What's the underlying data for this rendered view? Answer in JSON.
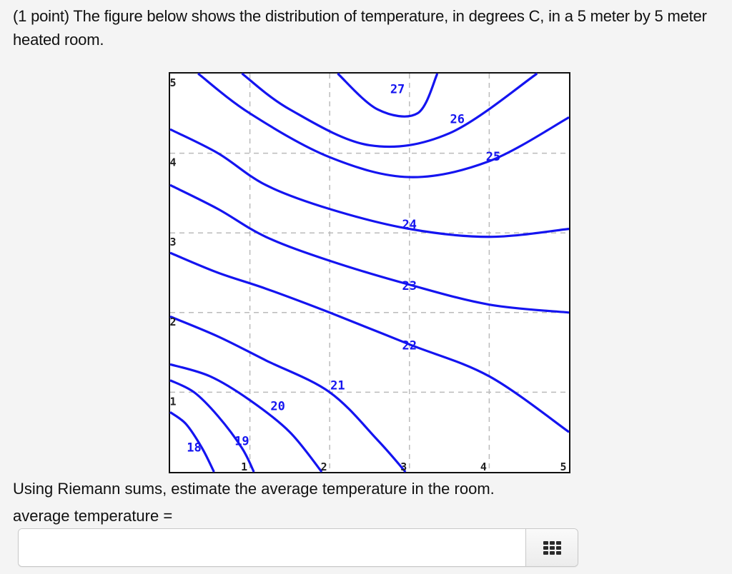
{
  "question": {
    "text": "(1 point) The figure below shows the distribution of temperature, in degrees C, in a 5 meter by 5 meter heated room.",
    "prompt": "Using Riemann sums, estimate the average temperature in the room.",
    "answer_label": "average temperature ="
  },
  "answer": {
    "value": "",
    "placeholder": "",
    "keypad_icon": "grid-keypad-icon"
  },
  "colors": {
    "contour": "#1414f0",
    "gridline": "#bbbbbb",
    "background": "#f4f4f4"
  },
  "chart_data": {
    "type": "contour",
    "title": "",
    "xlabel": "",
    "ylabel": "",
    "xlim": [
      0,
      5
    ],
    "ylim": [
      0,
      5
    ],
    "x_ticks": [
      "1",
      "2",
      "3",
      "4",
      "5"
    ],
    "y_ticks": [
      "1",
      "2",
      "3",
      "4",
      "5"
    ],
    "grid": true,
    "grid_style": "dashed",
    "contour_levels": [
      {
        "level": 18,
        "label": "18",
        "points": [
          [
            0,
            0.75
          ],
          [
            0.2,
            0.6
          ],
          [
            0.4,
            0.3
          ],
          [
            0.55,
            0
          ]
        ]
      },
      {
        "level": 19,
        "label": "19",
        "points": [
          [
            0,
            1.15
          ],
          [
            0.3,
            1.0
          ],
          [
            0.6,
            0.7
          ],
          [
            0.9,
            0.3
          ],
          [
            1.05,
            0
          ]
        ]
      },
      {
        "level": 20,
        "label": "20",
        "points": [
          [
            0,
            1.35
          ],
          [
            0.5,
            1.2
          ],
          [
            1.0,
            0.9
          ],
          [
            1.5,
            0.5
          ],
          [
            1.9,
            0
          ]
        ]
      },
      {
        "level": 21,
        "label": "21",
        "points": [
          [
            0,
            1.95
          ],
          [
            0.6,
            1.7
          ],
          [
            1.2,
            1.4
          ],
          [
            2.0,
            1.0
          ],
          [
            2.6,
            0.4
          ],
          [
            2.95,
            0
          ]
        ]
      },
      {
        "level": 22,
        "label": "22",
        "points": [
          [
            0,
            2.75
          ],
          [
            0.6,
            2.5
          ],
          [
            1.2,
            2.3
          ],
          [
            2.0,
            2.0
          ],
          [
            3.0,
            1.6
          ],
          [
            4.0,
            1.2
          ],
          [
            5.0,
            0.5
          ]
        ]
      },
      {
        "level": 23,
        "label": "23",
        "points": [
          [
            0,
            3.6
          ],
          [
            0.6,
            3.3
          ],
          [
            1.2,
            2.95
          ],
          [
            2.0,
            2.65
          ],
          [
            3.0,
            2.35
          ],
          [
            4.0,
            2.1
          ],
          [
            5.0,
            2.0
          ]
        ]
      },
      {
        "level": 24,
        "label": "24",
        "points": [
          [
            0,
            4.3
          ],
          [
            0.6,
            4.0
          ],
          [
            1.2,
            3.6
          ],
          [
            2.0,
            3.3
          ],
          [
            3.0,
            3.05
          ],
          [
            4.0,
            2.95
          ],
          [
            5.0,
            3.05
          ]
        ]
      },
      {
        "level": 25,
        "label": "25",
        "points": [
          [
            0.35,
            5
          ],
          [
            1.0,
            4.5
          ],
          [
            2.0,
            3.95
          ],
          [
            3.0,
            3.7
          ],
          [
            4.0,
            3.9
          ],
          [
            5.0,
            4.45
          ]
        ]
      },
      {
        "level": 26,
        "label": "26",
        "points": [
          [
            0.9,
            5
          ],
          [
            1.5,
            4.55
          ],
          [
            2.5,
            4.1
          ],
          [
            3.5,
            4.25
          ],
          [
            4.6,
            5
          ]
        ]
      },
      {
        "level": 27,
        "label": "27",
        "points": [
          [
            2.1,
            5
          ],
          [
            2.6,
            4.55
          ],
          [
            3.1,
            4.5
          ],
          [
            3.35,
            5
          ]
        ]
      }
    ]
  }
}
